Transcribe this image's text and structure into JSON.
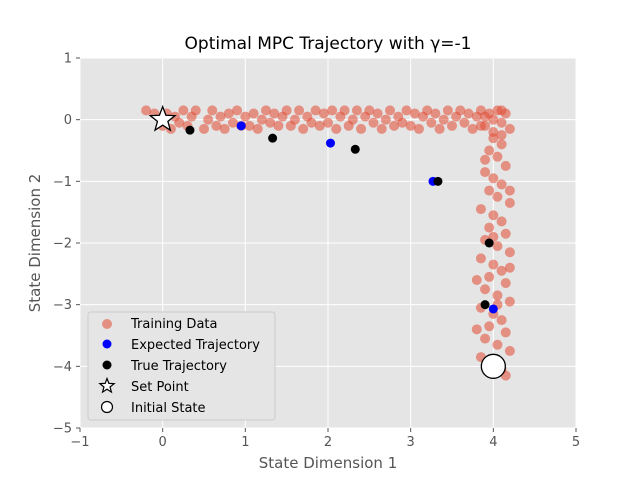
{
  "chart_data": {
    "type": "scatter",
    "title": "Optimal MPC Trajectory with γ=-1",
    "xlabel": "State Dimension 1",
    "ylabel": "State Dimension 2",
    "xlim": [
      -1,
      5
    ],
    "ylim": [
      -5,
      1
    ],
    "xticks": [
      "−1",
      "0",
      "1",
      "2",
      "3",
      "4",
      "5"
    ],
    "yticks": [
      "1",
      "0",
      "−1",
      "−2",
      "−3",
      "−4",
      "−5"
    ],
    "grid": true,
    "background": "#e5e5e5",
    "legend_position": "lower-left",
    "series": [
      {
        "name": "Training Data",
        "color": "#e24a33",
        "style": "dense noisy points along L-shaped path from (0,0) to (4,0) then down to (4,-4)",
        "points": [
          [
            -0.2,
            0.15
          ],
          [
            -0.1,
            0.1
          ],
          [
            0.0,
            -0.1
          ],
          [
            0.05,
            0.1
          ],
          [
            0.1,
            -0.15
          ],
          [
            0.15,
            0.05
          ],
          [
            0.2,
            -0.05
          ],
          [
            0.25,
            0.15
          ],
          [
            0.3,
            -0.1
          ],
          [
            0.35,
            0.05
          ],
          [
            0.4,
            0.15
          ],
          [
            0.5,
            -0.15
          ],
          [
            0.55,
            0.0
          ],
          [
            0.6,
            0.15
          ],
          [
            0.65,
            -0.1
          ],
          [
            0.7,
            0.05
          ],
          [
            0.75,
            -0.15
          ],
          [
            0.8,
            0.1
          ],
          [
            0.85,
            -0.05
          ],
          [
            0.9,
            0.15
          ],
          [
            0.95,
            -0.1
          ],
          [
            1.0,
            0.05
          ],
          [
            1.05,
            -0.1
          ],
          [
            1.1,
            0.1
          ],
          [
            1.15,
            -0.15
          ],
          [
            1.2,
            0.0
          ],
          [
            1.25,
            0.15
          ],
          [
            1.3,
            -0.05
          ],
          [
            1.35,
            0.1
          ],
          [
            1.4,
            -0.1
          ],
          [
            1.45,
            0.05
          ],
          [
            1.5,
            0.15
          ],
          [
            1.55,
            -0.1
          ],
          [
            1.6,
            0.0
          ],
          [
            1.65,
            0.15
          ],
          [
            1.7,
            -0.15
          ],
          [
            1.75,
            0.05
          ],
          [
            1.8,
            -0.05
          ],
          [
            1.85,
            0.15
          ],
          [
            1.9,
            -0.1
          ],
          [
            1.95,
            0.1
          ],
          [
            2.0,
            -0.05
          ],
          [
            2.05,
            0.15
          ],
          [
            2.1,
            -0.15
          ],
          [
            2.15,
            0.05
          ],
          [
            2.2,
            0.15
          ],
          [
            2.25,
            -0.1
          ],
          [
            2.3,
            0.0
          ],
          [
            2.35,
            0.15
          ],
          [
            2.4,
            -0.15
          ],
          [
            2.45,
            0.05
          ],
          [
            2.5,
            0.15
          ],
          [
            2.55,
            -0.05
          ],
          [
            2.6,
            0.1
          ],
          [
            2.65,
            -0.15
          ],
          [
            2.7,
            0.0
          ],
          [
            2.75,
            0.15
          ],
          [
            2.8,
            -0.1
          ],
          [
            2.85,
            0.05
          ],
          [
            2.9,
            -0.05
          ],
          [
            2.95,
            0.15
          ],
          [
            3.0,
            -0.1
          ],
          [
            3.05,
            0.1
          ],
          [
            3.1,
            -0.15
          ],
          [
            3.15,
            0.05
          ],
          [
            3.2,
            0.15
          ],
          [
            3.25,
            -0.05
          ],
          [
            3.3,
            0.1
          ],
          [
            3.35,
            -0.15
          ],
          [
            3.4,
            0.0
          ],
          [
            3.45,
            0.15
          ],
          [
            3.5,
            -0.1
          ],
          [
            3.55,
            0.05
          ],
          [
            3.6,
            0.15
          ],
          [
            3.65,
            -0.05
          ],
          [
            3.7,
            0.1
          ],
          [
            3.75,
            -0.15
          ],
          [
            3.8,
            0.05
          ],
          [
            3.85,
            0.15
          ],
          [
            3.9,
            -0.1
          ],
          [
            3.95,
            0.1
          ],
          [
            4.0,
            0.0
          ],
          [
            4.05,
            0.15
          ],
          [
            4.1,
            -0.05
          ],
          [
            4.15,
            0.1
          ],
          [
            4.2,
            -0.15
          ],
          [
            3.9,
            0.05
          ],
          [
            4.0,
            -0.2
          ],
          [
            4.1,
            0.15
          ],
          [
            3.85,
            -0.1
          ],
          [
            4.0,
            -0.3
          ],
          [
            4.1,
            -0.4
          ],
          [
            3.95,
            -0.5
          ],
          [
            4.05,
            -0.6
          ],
          [
            4.15,
            -0.75
          ],
          [
            3.9,
            -0.85
          ],
          [
            4.0,
            -0.95
          ],
          [
            4.1,
            -1.05
          ],
          [
            3.95,
            -1.15
          ],
          [
            4.05,
            -1.25
          ],
          [
            4.2,
            -1.35
          ],
          [
            3.85,
            -1.45
          ],
          [
            4.0,
            -1.55
          ],
          [
            4.1,
            -1.65
          ],
          [
            3.95,
            -1.75
          ],
          [
            4.15,
            -1.85
          ],
          [
            3.9,
            -1.95
          ],
          [
            4.05,
            -2.05
          ],
          [
            4.2,
            -2.15
          ],
          [
            3.85,
            -2.25
          ],
          [
            4.0,
            -2.35
          ],
          [
            4.1,
            -2.45
          ],
          [
            3.95,
            -2.55
          ],
          [
            4.15,
            -2.65
          ],
          [
            3.9,
            -2.75
          ],
          [
            4.05,
            -2.85
          ],
          [
            4.2,
            -2.95
          ],
          [
            3.85,
            -3.05
          ],
          [
            4.0,
            -3.15
          ],
          [
            4.1,
            -3.25
          ],
          [
            3.95,
            -3.35
          ],
          [
            4.15,
            -3.45
          ],
          [
            3.9,
            -3.55
          ],
          [
            4.05,
            -3.65
          ],
          [
            4.2,
            -3.75
          ],
          [
            3.85,
            -3.85
          ],
          [
            4.0,
            -3.95
          ],
          [
            4.1,
            -4.05
          ],
          [
            3.95,
            -4.1
          ],
          [
            4.15,
            -4.15
          ],
          [
            4.1,
            -0.25
          ],
          [
            3.9,
            -0.65
          ],
          [
            4.2,
            -1.15
          ],
          [
            3.8,
            -2.6
          ],
          [
            4.2,
            -2.4
          ],
          [
            3.8,
            -3.4
          ],
          [
            4.0,
            -1.9
          ],
          [
            4.05,
            -3.0
          ]
        ]
      },
      {
        "name": "Expected Trajectory",
        "color": "#0000ff",
        "points": [
          [
            0.0,
            0.03
          ],
          [
            0.95,
            -0.1
          ],
          [
            2.03,
            -0.38
          ],
          [
            3.27,
            -1.0
          ],
          [
            4.0,
            -3.07
          ]
        ]
      },
      {
        "name": "True Trajectory",
        "color": "#000000",
        "points": [
          [
            0.33,
            -0.17
          ],
          [
            1.33,
            -0.3
          ],
          [
            2.33,
            -0.48
          ],
          [
            3.33,
            -1.0
          ],
          [
            3.95,
            -2.0
          ],
          [
            3.9,
            -3.0
          ],
          [
            4.0,
            -4.0
          ]
        ]
      }
    ],
    "markers": [
      {
        "name": "Set Point",
        "type": "star",
        "point": [
          0.0,
          0.0
        ]
      },
      {
        "name": "Initial State",
        "type": "circle",
        "point": [
          4.0,
          -4.0
        ]
      }
    ]
  }
}
